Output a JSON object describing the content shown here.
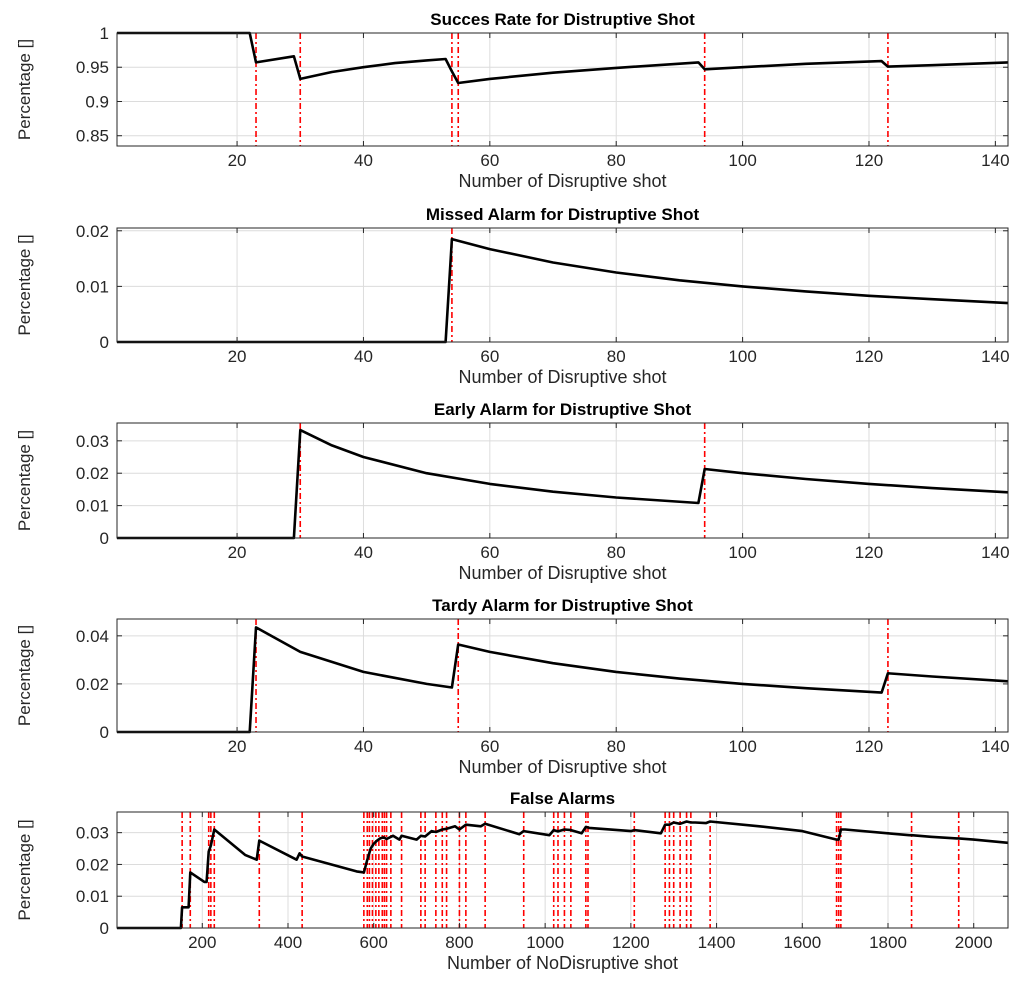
{
  "chart_data": [
    {
      "type": "line",
      "title": "Succes Rate for Distruptive Shot",
      "xlabel": "Number of Disruptive shot",
      "ylabel": "Percentage []",
      "xlim": [
        1,
        142
      ],
      "ylim": [
        0.835,
        1.0
      ],
      "xticks": [
        20,
        40,
        60,
        80,
        100,
        120,
        140
      ],
      "xticklabels": [
        "20",
        "40",
        "60",
        "80",
        "100",
        "120",
        "140"
      ],
      "yticks": [
        0.85,
        0.9,
        0.95,
        1
      ],
      "yticklabels": [
        "0.85",
        "0.9",
        "0.95",
        "1"
      ],
      "grid": true,
      "series": [
        {
          "color": "#000000",
          "x": [
            1,
            22,
            23,
            29,
            30,
            35,
            40,
            45,
            50,
            53,
            54,
            55,
            60,
            70,
            80,
            93,
            94,
            100,
            110,
            122,
            123,
            130,
            142
          ],
          "y": [
            1.0,
            1.0,
            0.957,
            0.966,
            0.933,
            0.943,
            0.95,
            0.956,
            0.96,
            0.962,
            0.944,
            0.927,
            0.933,
            0.942,
            0.949,
            0.957,
            0.947,
            0.95,
            0.955,
            0.959,
            0.951,
            0.953,
            0.957
          ]
        }
      ],
      "event_lines": {
        "color": "#ff0000",
        "x": [
          23,
          30,
          54,
          55,
          94,
          123
        ]
      }
    },
    {
      "type": "line",
      "title": "Missed Alarm for Distruptive Shot",
      "xlabel": "Number of Disruptive shot",
      "ylabel": "Percentage []",
      "xlim": [
        1,
        142
      ],
      "ylim": [
        0,
        0.0205
      ],
      "xticks": [
        20,
        40,
        60,
        80,
        100,
        120,
        140
      ],
      "xticklabels": [
        "20",
        "40",
        "60",
        "80",
        "100",
        "120",
        "140"
      ],
      "yticks": [
        0,
        0.01,
        0.02
      ],
      "yticklabels": [
        "0",
        "0.01",
        "0.02"
      ],
      "grid": true,
      "series": [
        {
          "color": "#000000",
          "x": [
            1,
            53,
            54,
            60,
            70,
            80,
            90,
            100,
            110,
            120,
            130,
            142
          ],
          "y": [
            0,
            0,
            0.0185,
            0.0167,
            0.0143,
            0.0125,
            0.0111,
            0.01,
            0.0091,
            0.0083,
            0.0077,
            0.007
          ]
        }
      ],
      "event_lines": {
        "color": "#ff0000",
        "x": [
          54
        ]
      }
    },
    {
      "type": "line",
      "title": "Early Alarm for Distruptive Shot",
      "xlabel": "Number of Disruptive shot",
      "ylabel": "Percentage []",
      "xlim": [
        1,
        142
      ],
      "ylim": [
        0,
        0.0355
      ],
      "xticks": [
        20,
        40,
        60,
        80,
        100,
        120,
        140
      ],
      "xticklabels": [
        "20",
        "40",
        "60",
        "80",
        "100",
        "120",
        "140"
      ],
      "yticks": [
        0,
        0.01,
        0.02,
        0.03
      ],
      "yticklabels": [
        "0",
        "0.01",
        "0.02",
        "0.03"
      ],
      "grid": true,
      "series": [
        {
          "color": "#000000",
          "x": [
            1,
            29,
            30,
            35,
            40,
            50,
            60,
            70,
            80,
            93,
            94,
            100,
            110,
            120,
            130,
            142
          ],
          "y": [
            0,
            0,
            0.0333,
            0.0286,
            0.025,
            0.02,
            0.0167,
            0.0143,
            0.0125,
            0.0108,
            0.0213,
            0.02,
            0.0182,
            0.0167,
            0.0154,
            0.0141
          ]
        }
      ],
      "event_lines": {
        "color": "#ff0000",
        "x": [
          30,
          94
        ]
      }
    },
    {
      "type": "line",
      "title": "Tardy Alarm for Distruptive Shot",
      "xlabel": "Number of Disruptive shot",
      "ylabel": "Percentage []",
      "xlim": [
        1,
        142
      ],
      "ylim": [
        0,
        0.047
      ],
      "xticks": [
        20,
        40,
        60,
        80,
        100,
        120,
        140
      ],
      "xticklabels": [
        "20",
        "40",
        "60",
        "80",
        "100",
        "120",
        "140"
      ],
      "yticks": [
        0,
        0.02,
        0.04
      ],
      "yticklabels": [
        "0",
        "0.02",
        "0.04"
      ],
      "grid": true,
      "series": [
        {
          "color": "#000000",
          "x": [
            1,
            22,
            23,
            30,
            40,
            50,
            54,
            55,
            60,
            70,
            80,
            90,
            100,
            110,
            122,
            123,
            130,
            142
          ],
          "y": [
            0,
            0,
            0.0435,
            0.0333,
            0.025,
            0.02,
            0.0185,
            0.0364,
            0.0333,
            0.0286,
            0.025,
            0.0222,
            0.02,
            0.0182,
            0.0164,
            0.0244,
            0.0231,
            0.0211
          ]
        }
      ],
      "event_lines": {
        "color": "#ff0000",
        "x": [
          23,
          55,
          123
        ]
      }
    },
    {
      "type": "line",
      "title": "False Alarms",
      "xlabel": "Number of NoDisruptive shot",
      "ylabel": "Percentage []",
      "xlim": [
        1,
        2080
      ],
      "ylim": [
        0,
        0.0365
      ],
      "xticks": [
        200,
        400,
        600,
        800,
        1000,
        1200,
        1400,
        1600,
        1800,
        2000
      ],
      "xticklabels": [
        "200",
        "400",
        "600",
        "800",
        "1000",
        "1200",
        "1400",
        "1600",
        "1800",
        "2000"
      ],
      "yticks": [
        0,
        0.01,
        0.02,
        0.03
      ],
      "yticklabels": [
        "0",
        "0.01",
        "0.02",
        "0.03"
      ],
      "grid": true,
      "series": [
        {
          "color": "#000000",
          "x": [
            1,
            150,
            153,
            168,
            172,
            205,
            210,
            215,
            220,
            228,
            300,
            327,
            333,
            420,
            427,
            433,
            560,
            577,
            585,
            593,
            600,
            608,
            615,
            623,
            630,
            645,
            660,
            665,
            700,
            710,
            720,
            735,
            745,
            760,
            770,
            790,
            800,
            815,
            850,
            860,
            940,
            950,
            1010,
            1020,
            1030,
            1045,
            1060,
            1085,
            1095,
            1103,
            1200,
            1208,
            1270,
            1280,
            1290,
            1300,
            1315,
            1330,
            1340,
            1350,
            1375,
            1385,
            1500,
            1600,
            1680,
            1685,
            1690,
            1700,
            1800,
            1850,
            1855,
            1900,
            1960,
            1965,
            2000,
            2080
          ],
          "y": [
            0,
            0,
            0.0065,
            0.0065,
            0.0175,
            0.0145,
            0.0145,
            0.024,
            0.026,
            0.031,
            0.023,
            0.0215,
            0.0275,
            0.0215,
            0.0235,
            0.0225,
            0.0178,
            0.0175,
            0.0215,
            0.025,
            0.0265,
            0.0275,
            0.0282,
            0.0285,
            0.028,
            0.029,
            0.0278,
            0.029,
            0.0278,
            0.029,
            0.0288,
            0.0305,
            0.0302,
            0.031,
            0.0312,
            0.032,
            0.031,
            0.0325,
            0.032,
            0.0328,
            0.0295,
            0.0305,
            0.0292,
            0.0308,
            0.0304,
            0.031,
            0.0308,
            0.0298,
            0.0318,
            0.0315,
            0.0305,
            0.0308,
            0.0298,
            0.0325,
            0.0325,
            0.0332,
            0.0328,
            0.0335,
            0.0332,
            0.0332,
            0.033,
            0.0335,
            0.032,
            0.0305,
            0.0278,
            0.0278,
            0.031,
            0.031,
            0.0298,
            0.0292,
            0.0292,
            0.0287,
            0.0282,
            0.0282,
            0.0278,
            0.0268
          ]
        }
      ],
      "event_lines": {
        "color": "#ff0000",
        "x": [
          153,
          172,
          215,
          220,
          228,
          333,
          433,
          577,
          585,
          590,
          597,
          605,
          612,
          620,
          625,
          630,
          640,
          665,
          710,
          720,
          745,
          760,
          770,
          800,
          815,
          860,
          950,
          1020,
          1030,
          1045,
          1060,
          1095,
          1100,
          1208,
          1280,
          1290,
          1300,
          1315,
          1330,
          1340,
          1385,
          1680,
          1685,
          1690,
          1855,
          1965
        ]
      }
    }
  ]
}
